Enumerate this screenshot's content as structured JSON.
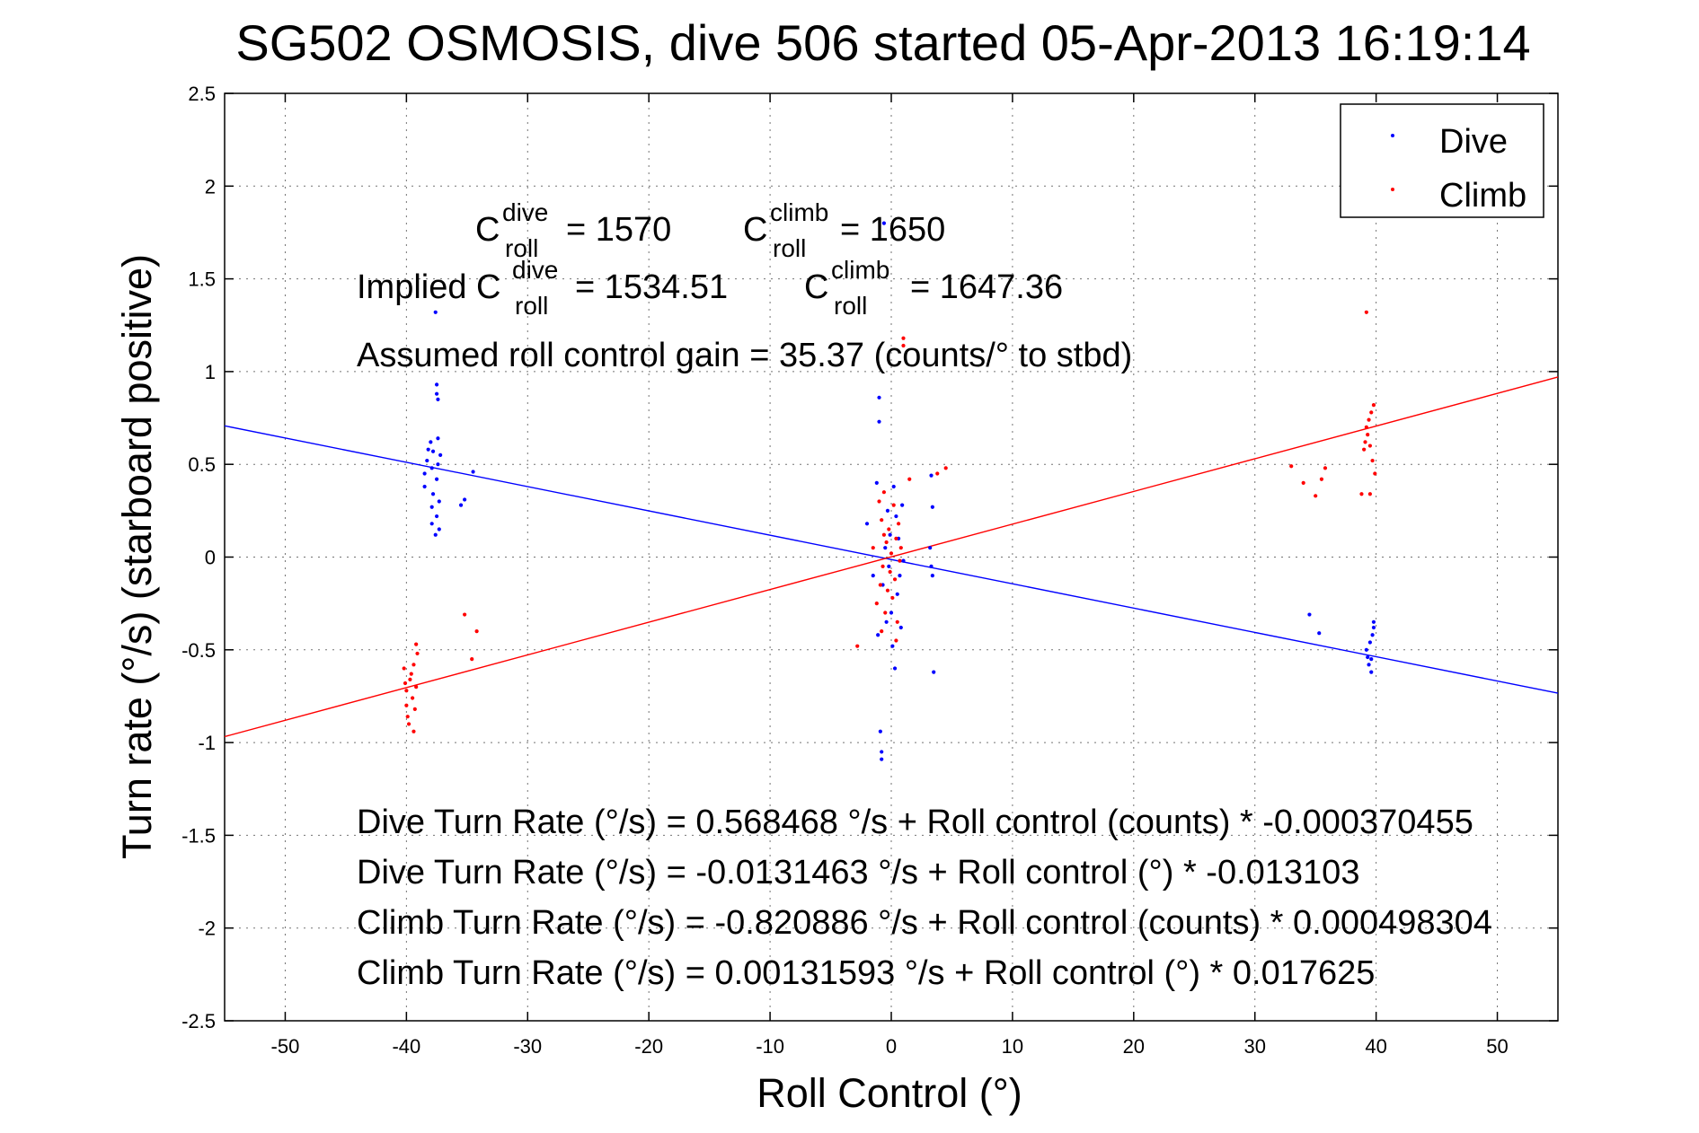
{
  "chart_data": {
    "type": "scatter",
    "title": "SG502 OSMOSIS, dive 506 started 05-Apr-2013 16:19:14",
    "xlabel": "Roll Control (°)",
    "ylabel": "Turn rate (°/s)  (starboard positive)",
    "xlim": [
      -55,
      55
    ],
    "ylim": [
      -2.5,
      2.5
    ],
    "x_ticks": [
      -50,
      -40,
      -30,
      -20,
      -10,
      0,
      10,
      20,
      30,
      40,
      50
    ],
    "y_ticks": [
      -2.5,
      -2,
      -1.5,
      -1,
      -0.5,
      0,
      0.5,
      1,
      1.5,
      2,
      2.5
    ],
    "x_tick_labels": [
      "-50",
      "-40",
      "-30",
      "-20",
      "-10",
      "0",
      "10",
      "20",
      "30",
      "40",
      "50"
    ],
    "y_tick_labels": [
      "-2.5",
      "-2",
      "-1.5",
      "-1",
      "-0.5",
      "0",
      "0.5",
      "1",
      "1.5",
      "2",
      "2.5"
    ],
    "grid": true,
    "legend": {
      "placement": "top-right",
      "entries": [
        "Dive",
        "Climb"
      ]
    },
    "colors": {
      "Dive": "#0000ff",
      "Climb": "#ff0000"
    },
    "series": [
      {
        "name": "Dive",
        "points": [
          [
            -38.5,
            0.38
          ],
          [
            -38.5,
            0.45
          ],
          [
            -38.3,
            0.52
          ],
          [
            -38.2,
            0.58
          ],
          [
            -38.0,
            0.62
          ],
          [
            -37.9,
            0.48
          ],
          [
            -37.9,
            0.27
          ],
          [
            -37.9,
            0.18
          ],
          [
            -37.8,
            0.34
          ],
          [
            -37.8,
            0.57
          ],
          [
            -37.6,
            0.12
          ],
          [
            -37.5,
            0.42
          ],
          [
            -37.5,
            0.22
          ],
          [
            -37.4,
            0.64
          ],
          [
            -37.4,
            0.5
          ],
          [
            -37.3,
            0.15
          ],
          [
            -37.3,
            0.3
          ],
          [
            -37.2,
            0.55
          ],
          [
            -37.5,
            0.93
          ],
          [
            -37.5,
            0.88
          ],
          [
            -37.4,
            0.85
          ],
          [
            -37.6,
            1.32
          ],
          [
            -35.5,
            0.28
          ],
          [
            -35.2,
            0.31
          ],
          [
            -34.5,
            0.46
          ],
          [
            -2.0,
            0.18
          ],
          [
            -1.5,
            -0.1
          ],
          [
            -1.2,
            0.4
          ],
          [
            -1.1,
            -0.42
          ],
          [
            -1.0,
            0.86
          ],
          [
            -1.0,
            0.73
          ],
          [
            -0.9,
            -0.94
          ],
          [
            -0.8,
            -1.09
          ],
          [
            -0.8,
            -1.05
          ],
          [
            -0.7,
            -0.15
          ],
          [
            -0.6,
            1.8
          ],
          [
            -0.5,
            0.05
          ],
          [
            -0.4,
            -0.35
          ],
          [
            -0.3,
            0.25
          ],
          [
            -0.2,
            -0.05
          ],
          [
            -0.1,
            0.12
          ],
          [
            0.0,
            -0.3
          ],
          [
            0.1,
            -0.48
          ],
          [
            0.2,
            0.38
          ],
          [
            0.3,
            -0.6
          ],
          [
            0.4,
            0.22
          ],
          [
            0.5,
            -0.2
          ],
          [
            0.6,
            0.1
          ],
          [
            0.7,
            -0.1
          ],
          [
            0.8,
            -0.38
          ],
          [
            0.9,
            0.28
          ],
          [
            1.0,
            -0.02
          ],
          [
            3.2,
            0.05
          ],
          [
            3.3,
            -0.05
          ],
          [
            3.4,
            -0.1
          ],
          [
            3.4,
            0.27
          ],
          [
            3.5,
            -0.62
          ],
          [
            3.3,
            0.44
          ],
          [
            34.5,
            -0.31
          ],
          [
            35.3,
            -0.41
          ],
          [
            39.2,
            -0.5
          ],
          [
            39.3,
            -0.54
          ],
          [
            39.4,
            -0.58
          ],
          [
            39.5,
            -0.46
          ],
          [
            39.6,
            -0.62
          ],
          [
            39.7,
            -0.42
          ],
          [
            39.8,
            -0.38
          ],
          [
            39.8,
            -0.35
          ],
          [
            39.6,
            -0.55
          ]
        ]
      },
      {
        "name": "Climb",
        "points": [
          [
            -40.2,
            -0.6
          ],
          [
            -40.1,
            -0.68
          ],
          [
            -40.0,
            -0.72
          ],
          [
            -40.0,
            -0.8
          ],
          [
            -39.9,
            -0.86
          ],
          [
            -39.8,
            -0.9
          ],
          [
            -39.7,
            -0.66
          ],
          [
            -39.6,
            -0.63
          ],
          [
            -39.5,
            -0.76
          ],
          [
            -39.4,
            -0.58
          ],
          [
            -39.4,
            -0.94
          ],
          [
            -39.3,
            -0.82
          ],
          [
            -39.2,
            -0.7
          ],
          [
            -39.2,
            -0.47
          ],
          [
            -39.1,
            -0.52
          ],
          [
            -35.2,
            -0.31
          ],
          [
            -34.6,
            -0.55
          ],
          [
            -34.2,
            -0.4
          ],
          [
            -2.8,
            -0.48
          ],
          [
            -1.5,
            0.05
          ],
          [
            -1.2,
            -0.25
          ],
          [
            -1.0,
            0.3
          ],
          [
            -0.9,
            -0.15
          ],
          [
            -0.8,
            0.2
          ],
          [
            -0.7,
            -0.05
          ],
          [
            -0.6,
            0.12
          ],
          [
            -0.5,
            -0.3
          ],
          [
            -0.4,
            0.08
          ],
          [
            -0.3,
            -0.18
          ],
          [
            -0.2,
            0.15
          ],
          [
            -0.1,
            -0.08
          ],
          [
            0.0,
            0.02
          ],
          [
            0.1,
            -0.22
          ],
          [
            0.2,
            0.28
          ],
          [
            0.3,
            -0.12
          ],
          [
            0.4,
            0.1
          ],
          [
            0.5,
            -0.35
          ],
          [
            0.6,
            0.18
          ],
          [
            0.7,
            -0.02
          ],
          [
            0.8,
            0.05
          ],
          [
            -0.6,
            0.35
          ],
          [
            0.4,
            -0.45
          ],
          [
            -0.8,
            -0.4
          ],
          [
            1.0,
            1.18
          ],
          [
            1.0,
            1.14
          ],
          [
            1.5,
            0.42
          ],
          [
            3.8,
            0.45
          ],
          [
            4.5,
            0.48
          ],
          [
            33.0,
            0.49
          ],
          [
            34.0,
            0.4
          ],
          [
            35.0,
            0.33
          ],
          [
            35.5,
            0.42
          ],
          [
            35.8,
            0.48
          ],
          [
            38.8,
            0.34
          ],
          [
            39.0,
            0.58
          ],
          [
            39.1,
            0.62
          ],
          [
            39.2,
            0.7
          ],
          [
            39.3,
            0.66
          ],
          [
            39.4,
            0.74
          ],
          [
            39.5,
            0.6
          ],
          [
            39.6,
            0.78
          ],
          [
            39.7,
            0.52
          ],
          [
            39.8,
            0.82
          ],
          [
            39.9,
            0.45
          ],
          [
            39.5,
            0.34
          ],
          [
            39.2,
            1.32
          ]
        ]
      }
    ],
    "fit_lines": [
      {
        "series": "Dive",
        "intercept": -0.0131463,
        "slope": -0.013103
      },
      {
        "series": "Climb",
        "intercept": 0.00131593,
        "slope": 0.017625
      }
    ],
    "annotations": {
      "c_label": "C",
      "roll_sub": "roll",
      "dive_sup": "dive",
      "climb_sup": "climb",
      "c_dive_value": "= 1570",
      "c_climb_value": "= 1650",
      "implied_prefix": "Implied C",
      "implied_dive_value": "= 1534.51",
      "implied_climb_value": "= 1647.36",
      "gain_text": "Assumed roll control gain = 35.37 (counts/° to stbd)",
      "eq1": "Dive Turn Rate (°/s) = 0.568468 °/s + Roll control (counts) * -0.000370455",
      "eq2": "Dive Turn Rate (°/s) = -0.0131463 °/s + Roll control (°) * -0.013103",
      "eq3": "Climb Turn Rate (°/s) = -0.820886 °/s + Roll control (counts) * 0.000498304",
      "eq4": "Climb Turn Rate (°/s) = 0.00131593 °/s + Roll control (°) * 0.017625"
    }
  }
}
